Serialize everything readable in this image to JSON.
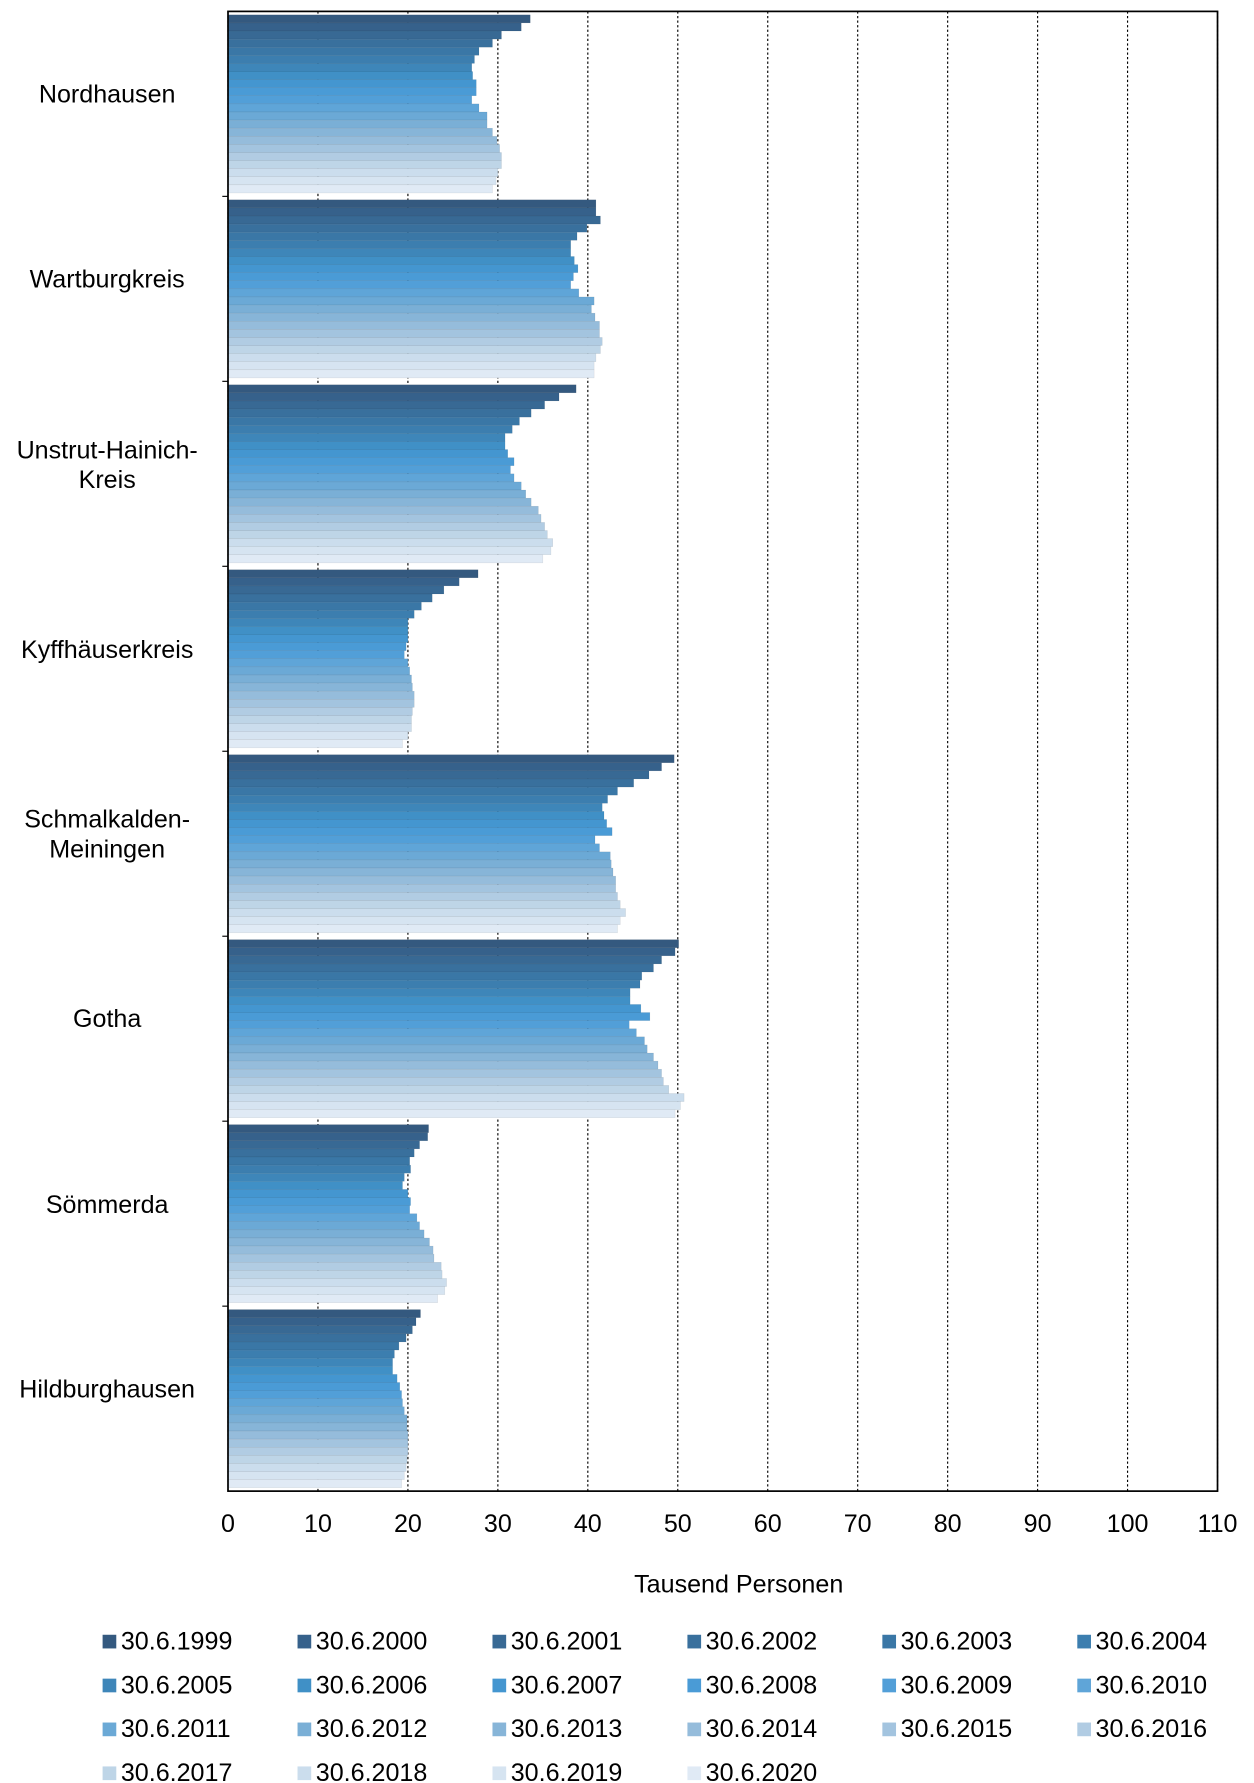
{
  "chart_data": {
    "type": "hbar",
    "categories": [
      "Nordhausen",
      "Wartburgkreis",
      "Unstrut-Hainich-Kreis",
      "Kyffhäuserkreis",
      "Schmalkalden-Meiningen",
      "Gotha",
      "Sömmerda",
      "Hildburghausen"
    ],
    "xlabel": "Tausend Personen",
    "xlim": [
      0,
      110
    ],
    "xticks": [
      0,
      10,
      20,
      30,
      40,
      50,
      60,
      70,
      80,
      90,
      100,
      110
    ],
    "grid": true,
    "series": [
      {
        "name": "30.6.1999",
        "color": "#34597f",
        "values": [
          33.6,
          40.9,
          38.7,
          27.8,
          49.6,
          50.1,
          22.3,
          21.4
        ]
      },
      {
        "name": "30.6.2000",
        "color": "#36618b",
        "values": [
          32.6,
          40.9,
          36.8,
          25.7,
          48.2,
          49.7,
          22.2,
          20.9
        ]
      },
      {
        "name": "30.6.2001",
        "color": "#386994",
        "values": [
          30.4,
          41.4,
          35.2,
          24.0,
          46.8,
          48.2,
          21.3,
          20.5
        ]
      },
      {
        "name": "30.6.2002",
        "color": "#39709d",
        "values": [
          29.4,
          39.9,
          33.7,
          22.7,
          45.1,
          47.3,
          20.7,
          19.8
        ]
      },
      {
        "name": "30.6.2003",
        "color": "#3a77a6",
        "values": [
          27.9,
          38.8,
          32.4,
          21.5,
          43.3,
          46.0,
          20.2,
          19.0
        ]
      },
      {
        "name": "30.6.2004",
        "color": "#3c7eaf",
        "values": [
          27.4,
          38.1,
          31.6,
          20.7,
          42.2,
          45.8,
          20.3,
          18.5
        ]
      },
      {
        "name": "30.6.2005",
        "color": "#3e86b9",
        "values": [
          27.1,
          38.1,
          30.8,
          20.0,
          41.6,
          44.7,
          19.6,
          18.3
        ]
      },
      {
        "name": "30.6.2006",
        "color": "#4090c6",
        "values": [
          27.2,
          38.5,
          30.8,
          20.0,
          41.8,
          44.7,
          19.4,
          18.3
        ]
      },
      {
        "name": "30.6.2007",
        "color": "#4496d0",
        "values": [
          27.6,
          38.9,
          31.1,
          20.0,
          42.1,
          45.9,
          20.0,
          18.8
        ]
      },
      {
        "name": "30.6.2008",
        "color": "#4a9bd6",
        "values": [
          27.6,
          38.4,
          31.8,
          19.8,
          42.7,
          46.9,
          20.3,
          19.1
        ]
      },
      {
        "name": "30.6.2009",
        "color": "#529fd8",
        "values": [
          27.1,
          38.1,
          31.4,
          19.6,
          40.8,
          44.6,
          20.2,
          19.3
        ]
      },
      {
        "name": "30.6.2010",
        "color": "#5fa5d8",
        "values": [
          27.9,
          39.0,
          31.8,
          20.0,
          41.3,
          45.4,
          21.0,
          19.4
        ]
      },
      {
        "name": "30.6.2011",
        "color": "#6ba9d6",
        "values": [
          28.8,
          40.7,
          32.6,
          20.2,
          42.5,
          46.3,
          21.3,
          19.6
        ]
      },
      {
        "name": "30.6.2012",
        "color": "#7aafd6",
        "values": [
          28.8,
          40.4,
          33.1,
          20.4,
          42.6,
          46.6,
          21.8,
          19.9
        ]
      },
      {
        "name": "30.6.2013",
        "color": "#87b5d8",
        "values": [
          29.4,
          40.8,
          33.7,
          20.5,
          42.8,
          47.3,
          22.4,
          19.9
        ]
      },
      {
        "name": "30.6.2014",
        "color": "#95bcdb",
        "values": [
          29.9,
          41.3,
          34.5,
          20.7,
          43.1,
          47.8,
          22.8,
          20.0
        ]
      },
      {
        "name": "30.6.2015",
        "color": "#a3c4df",
        "values": [
          30.2,
          41.3,
          34.8,
          20.7,
          43.1,
          48.2,
          22.9,
          20.0
        ]
      },
      {
        "name": "30.6.2016",
        "color": "#b1cce3",
        "values": [
          30.4,
          41.6,
          35.2,
          20.5,
          43.3,
          48.4,
          23.7,
          20.0
        ]
      },
      {
        "name": "30.6.2017",
        "color": "#bed5e7",
        "values": [
          30.4,
          41.4,
          35.5,
          20.4,
          43.6,
          49.0,
          23.8,
          19.9
        ]
      },
      {
        "name": "30.6.2018",
        "color": "#cbdded",
        "values": [
          30.0,
          40.9,
          36.1,
          20.4,
          44.2,
          50.7,
          24.3,
          19.8
        ]
      },
      {
        "name": "30.6.2019",
        "color": "#d6e4f1",
        "values": [
          29.8,
          40.7,
          35.9,
          20.0,
          43.6,
          50.3,
          24.1,
          19.6
        ]
      },
      {
        "name": "30.6.2020",
        "color": "#e0eaf5",
        "values": [
          29.4,
          40.7,
          35.0,
          19.4,
          43.3,
          49.7,
          23.3,
          19.3
        ]
      }
    ]
  }
}
